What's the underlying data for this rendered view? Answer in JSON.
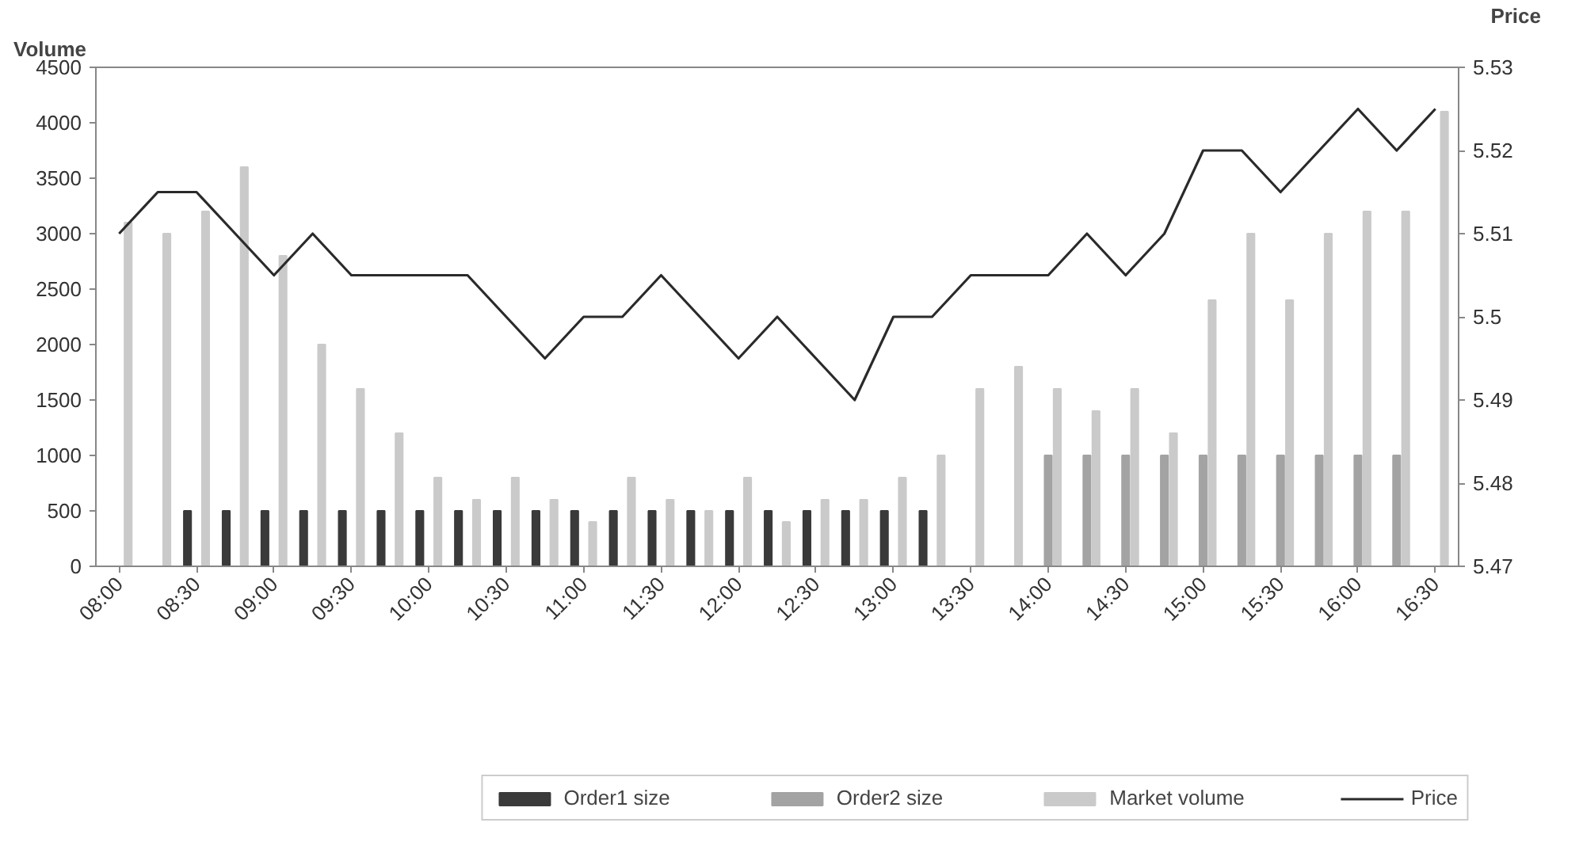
{
  "chart_data": {
    "type": "bar",
    "categories": [
      "08:00",
      null,
      "08:30",
      null,
      "09:00",
      null,
      "09:30",
      null,
      "10:00",
      null,
      "10:30",
      null,
      "11:00",
      null,
      "11:30",
      null,
      "12:00",
      null,
      "12:30",
      null,
      "13:00",
      null,
      "13:30",
      null,
      "14:00",
      null,
      "14:30",
      null,
      "15:00",
      null,
      "15:30",
      null,
      "16:00",
      null,
      "16:30"
    ],
    "series": [
      {
        "name": "Order1 size",
        "color": "#3a3a3a",
        "values": [
          null,
          null,
          500,
          500,
          500,
          500,
          500,
          500,
          500,
          500,
          500,
          500,
          500,
          500,
          500,
          500,
          500,
          500,
          500,
          500,
          500,
          500,
          null,
          null,
          null,
          null,
          null,
          null,
          null,
          null,
          null,
          null,
          null,
          null,
          null
        ]
      },
      {
        "name": "Order2 size",
        "color": "#a3a3a3",
        "values": [
          null,
          null,
          null,
          null,
          null,
          null,
          null,
          null,
          null,
          null,
          null,
          null,
          null,
          null,
          null,
          null,
          null,
          null,
          null,
          null,
          null,
          null,
          null,
          null,
          1000,
          1000,
          1000,
          1000,
          1000,
          1000,
          1000,
          1000,
          1000,
          1000,
          null
        ]
      },
      {
        "name": "Market volume",
        "color": "#cacaca",
        "values": [
          3100,
          3000,
          3200,
          3600,
          2800,
          2000,
          1600,
          1200,
          800,
          600,
          800,
          600,
          400,
          800,
          600,
          500,
          800,
          400,
          600,
          600,
          800,
          1000,
          1600,
          1800,
          1600,
          1400,
          1600,
          1200,
          2400,
          3000,
          2400,
          3000,
          3200,
          3200,
          4100
        ]
      },
      {
        "name": "Price",
        "type": "line",
        "axis": "y2",
        "color": "#2a2a2a",
        "values": [
          5.51,
          5.515,
          5.515,
          5.51,
          5.505,
          5.51,
          5.505,
          5.505,
          5.505,
          5.505,
          5.5,
          5.495,
          5.5,
          5.5,
          5.505,
          5.5,
          5.495,
          5.5,
          5.495,
          5.49,
          5.5,
          5.5,
          5.505,
          5.505,
          5.505,
          5.51,
          5.505,
          5.51,
          5.52,
          5.52,
          5.515,
          5.52,
          5.525,
          5.52,
          5.525
        ]
      }
    ],
    "ylabel": "Volume",
    "y2label": "Price",
    "ylim": [
      0,
      4500
    ],
    "yticks": [
      0,
      500,
      1000,
      1500,
      2000,
      2500,
      3000,
      3500,
      4000,
      4500
    ],
    "y2lim": [
      5.47,
      5.53
    ],
    "y2ticks": [
      5.47,
      5.48,
      5.49,
      5.5,
      5.51,
      5.52,
      5.53
    ],
    "grid": false,
    "legend": "bottom"
  }
}
